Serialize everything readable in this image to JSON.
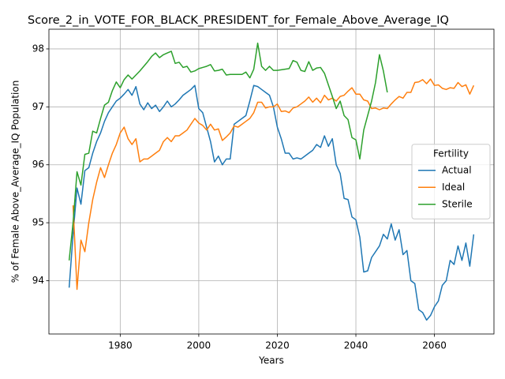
{
  "chart_data": {
    "type": "line",
    "title": "Score_2_in_VOTE_FOR_BLACK_PRESIDENT_for_Female_Above_Average_IQ",
    "x_label": "Years",
    "y_label": "% of Female Above_Average_IQ Population",
    "x": [
      1967,
      1968,
      1969,
      1970,
      1971,
      1972,
      1973,
      1974,
      1975,
      1976,
      1977,
      1978,
      1979,
      1980,
      1981,
      1982,
      1983,
      1984,
      1985,
      1986,
      1987,
      1988,
      1989,
      1990,
      1991,
      1992,
      1993,
      1994,
      1995,
      1996,
      1997,
      1998,
      1999,
      2000,
      2001,
      2002,
      2003,
      2004,
      2005,
      2006,
      2007,
      2008,
      2009,
      2010,
      2011,
      2012,
      2013,
      2014,
      2015,
      2016,
      2017,
      2018,
      2019,
      2020,
      2021,
      2022,
      2023,
      2024,
      2025,
      2026,
      2027,
      2028,
      2029,
      2030,
      2031,
      2032,
      2033,
      2034,
      2035,
      2036,
      2037,
      2038,
      2039,
      2040,
      2041,
      2042,
      2043,
      2044,
      2045,
      2046,
      2047,
      2048,
      2049,
      2050,
      2051,
      2052,
      2053,
      2054,
      2055,
      2056,
      2057,
      2058,
      2059,
      2060,
      2061,
      2062,
      2063,
      2064,
      2065,
      2066,
      2067,
      2068,
      2069,
      2070
    ],
    "series": [
      {
        "name": "Actual",
        "color": "#1f77b4",
        "values": [
          93.88,
          94.8,
          95.6,
          95.32,
          95.9,
          95.95,
          96.2,
          96.4,
          96.55,
          96.75,
          96.9,
          97.0,
          97.1,
          97.15,
          97.22,
          97.3,
          97.2,
          97.35,
          97.05,
          96.95,
          97.07,
          96.97,
          97.03,
          96.92,
          97.0,
          97.1,
          97.0,
          97.05,
          97.12,
          97.2,
          97.25,
          97.3,
          97.37,
          96.97,
          96.9,
          96.65,
          96.4,
          96.05,
          96.15,
          96.0,
          96.1,
          96.1,
          96.7,
          96.75,
          96.8,
          96.85,
          97.1,
          97.37,
          97.35,
          97.3,
          97.25,
          97.2,
          97.0,
          96.65,
          96.45,
          96.2,
          96.2,
          96.1,
          96.12,
          96.1,
          96.15,
          96.2,
          96.25,
          96.35,
          96.3,
          96.5,
          96.32,
          96.45,
          96.0,
          95.85,
          95.42,
          95.4,
          95.1,
          95.05,
          94.75,
          94.15,
          94.17,
          94.4,
          94.5,
          94.6,
          94.8,
          94.72,
          94.98,
          94.7,
          94.88,
          94.45,
          94.52,
          94.0,
          93.95,
          93.5,
          93.45,
          93.32,
          93.4,
          93.55,
          93.65,
          93.92,
          94.0,
          94.35,
          94.28,
          94.6,
          94.35,
          94.65,
          94.25,
          94.8
        ]
      },
      {
        "name": "Ideal",
        "color": "#ff7f0e",
        "values": [
          null,
          95.3,
          93.85,
          94.7,
          94.5,
          95.0,
          95.4,
          95.7,
          95.95,
          95.78,
          96.0,
          96.2,
          96.35,
          96.55,
          96.65,
          96.45,
          96.35,
          96.45,
          96.05,
          96.1,
          96.1,
          96.15,
          96.2,
          96.25,
          96.4,
          96.47,
          96.4,
          96.5,
          96.5,
          96.55,
          96.6,
          96.7,
          96.8,
          96.72,
          96.68,
          96.6,
          96.7,
          96.6,
          96.62,
          96.42,
          96.48,
          96.55,
          96.67,
          96.65,
          96.7,
          96.75,
          96.8,
          96.9,
          97.08,
          97.08,
          96.98,
          97.0,
          97.0,
          97.05,
          96.92,
          96.93,
          96.9,
          96.98,
          97.0,
          97.05,
          97.1,
          97.17,
          97.08,
          97.15,
          97.07,
          97.2,
          97.12,
          97.15,
          97.1,
          97.18,
          97.2,
          97.27,
          97.33,
          97.22,
          97.22,
          97.12,
          97.1,
          96.97,
          96.98,
          96.95,
          96.98,
          96.97,
          97.05,
          97.12,
          97.18,
          97.15,
          97.25,
          97.25,
          97.42,
          97.43,
          97.47,
          97.4,
          97.48,
          97.37,
          97.38,
          97.32,
          97.3,
          97.33,
          97.32,
          97.42,
          97.35,
          97.38,
          97.22,
          97.37
        ]
      },
      {
        "name": "Sterile",
        "color": "#2ca02c",
        "values": [
          94.35,
          95.0,
          95.88,
          95.65,
          96.18,
          96.2,
          96.58,
          96.55,
          96.8,
          97.03,
          97.08,
          97.28,
          97.43,
          97.33,
          97.47,
          97.55,
          97.48,
          97.55,
          97.62,
          97.7,
          97.78,
          97.87,
          97.93,
          97.85,
          97.9,
          97.93,
          97.96,
          97.75,
          97.77,
          97.68,
          97.7,
          97.6,
          97.62,
          97.66,
          97.68,
          97.7,
          97.73,
          97.62,
          97.63,
          97.65,
          97.55,
          97.56,
          97.56,
          97.56,
          97.56,
          97.6,
          97.5,
          97.65,
          98.1,
          97.7,
          97.63,
          97.7,
          97.63,
          97.63,
          97.64,
          97.65,
          97.66,
          97.8,
          97.77,
          97.63,
          97.61,
          97.78,
          97.63,
          97.67,
          97.68,
          97.58,
          97.38,
          97.18,
          96.97,
          97.1,
          96.85,
          96.78,
          96.47,
          96.43,
          96.1,
          96.6,
          96.85,
          97.1,
          97.42,
          97.9,
          97.62,
          97.25,
          null,
          null,
          null,
          null,
          null,
          null,
          null,
          null,
          null,
          null,
          null,
          null,
          null,
          null,
          null,
          null,
          null,
          null,
          null,
          null,
          null,
          null
        ]
      }
    ],
    "xlim": [
      1961.85,
      2075.15
    ],
    "xticks": [
      1980,
      2000,
      2020,
      2040,
      2060
    ],
    "ylim": [
      93.08,
      98.34
    ],
    "yticks": [
      94,
      95,
      96,
      97,
      98
    ],
    "grid": true,
    "legend_title": "Fertility",
    "legend_position": "center right"
  }
}
